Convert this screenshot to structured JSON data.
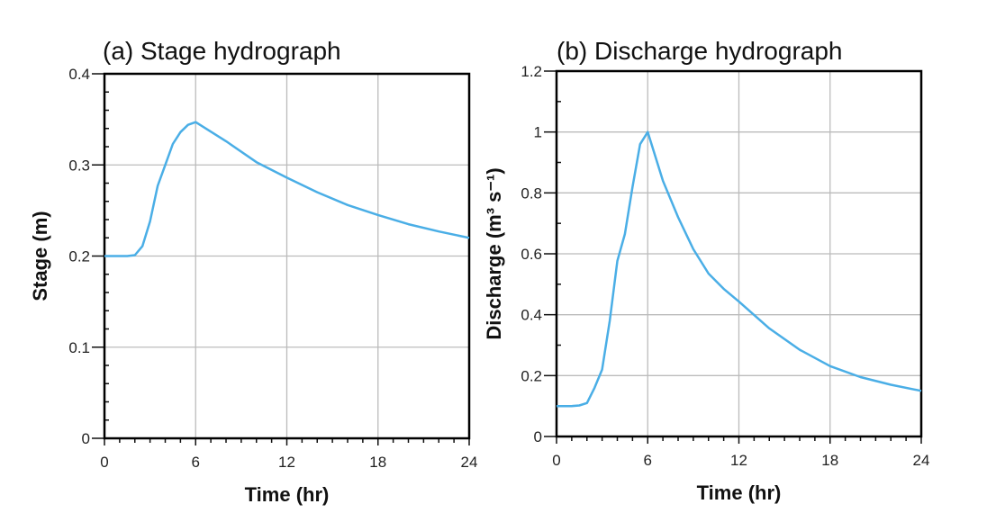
{
  "chart_data": [
    {
      "type": "line",
      "title": "(a) Stage hydrograph",
      "xlabel": "Time (hr)",
      "ylabel": "Stage (m)",
      "xlim": [
        0,
        24
      ],
      "ylim": [
        0,
        0.4
      ],
      "xticks": [
        0,
        6,
        12,
        18,
        24
      ],
      "xtick_labels": [
        "0",
        "6",
        "12",
        "18",
        "24"
      ],
      "yticks": [
        0,
        0.1,
        0.2,
        0.3,
        0.4
      ],
      "ytick_labels": [
        "0",
        "0.1",
        "0.2",
        "0.3",
        "0.4"
      ],
      "x_minor_step": 1,
      "y_minor_step": 0.02,
      "grid": true,
      "line_color": "#4aaee6",
      "x": [
        0,
        1,
        1.5,
        2,
        2.5,
        3,
        3.5,
        4,
        4.5,
        5,
        5.5,
        6,
        8,
        10,
        12,
        14,
        16,
        18,
        20,
        22,
        24
      ],
      "y": [
        0.2,
        0.2,
        0.2,
        0.201,
        0.211,
        0.238,
        0.277,
        0.3,
        0.323,
        0.336,
        0.344,
        0.347,
        0.326,
        0.303,
        0.286,
        0.27,
        0.256,
        0.245,
        0.235,
        0.227,
        0.22
      ]
    },
    {
      "type": "line",
      "title": "(b) Discharge hydrograph",
      "xlabel": "Time (hr)",
      "ylabel": "Discharge (m³ s⁻¹)",
      "xlim": [
        0,
        24
      ],
      "ylim": [
        0,
        1.2
      ],
      "xticks": [
        0,
        6,
        12,
        18,
        24
      ],
      "xtick_labels": [
        "0",
        "6",
        "12",
        "18",
        "24"
      ],
      "yticks": [
        0,
        0.2,
        0.4,
        0.6,
        0.8,
        1,
        1.2
      ],
      "ytick_labels": [
        "0",
        "0.2",
        "0.4",
        "0.6",
        "0.8",
        "1",
        "1.2"
      ],
      "x_minor_step": 1,
      "y_minor_step": 0.1,
      "grid": true,
      "line_color": "#4aaee6",
      "x": [
        0,
        1,
        1.5,
        2,
        2.5,
        3,
        3.5,
        4,
        4.5,
        5,
        5.5,
        6,
        7,
        8,
        9,
        10,
        11,
        12,
        14,
        16,
        18,
        20,
        22,
        24
      ],
      "y": [
        0.1,
        0.1,
        0.102,
        0.11,
        0.16,
        0.22,
        0.38,
        0.576,
        0.665,
        0.82,
        0.96,
        1.0,
        0.84,
        0.72,
        0.615,
        0.535,
        0.485,
        0.443,
        0.355,
        0.285,
        0.231,
        0.195,
        0.17,
        0.15
      ]
    }
  ]
}
